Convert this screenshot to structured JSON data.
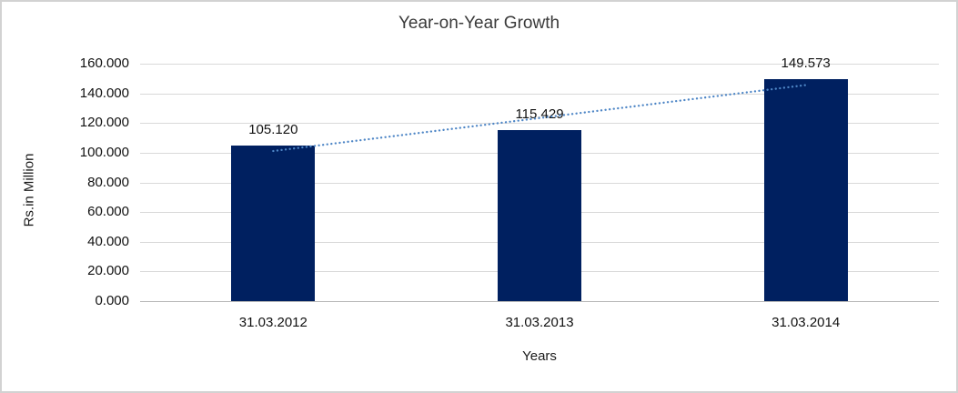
{
  "chart_data": {
    "type": "bar",
    "title": "Year-on-Year Growth",
    "xlabel": "Years",
    "ylabel": "Rs.in Million",
    "categories": [
      "31.03.2012",
      "31.03.2013",
      "31.03.2014"
    ],
    "values": [
      105.12,
      115.429,
      149.573
    ],
    "value_labels": [
      "105.120",
      "115.429",
      "149.573"
    ],
    "y_ticks": [
      "0.000",
      "20.000",
      "40.000",
      "60.000",
      "80.000",
      "100.000",
      "120.000",
      "140.000",
      "160.000"
    ],
    "ylim": [
      0,
      160
    ],
    "grid": true,
    "legend_position": "none",
    "bar_color": "#002060",
    "trendline": {
      "type": "linear",
      "style": "dotted",
      "color": "#4e86c6"
    },
    "gridline_color": "#d9d9d9",
    "axis_line_color": "#b7b7b7",
    "frame_border_color": "#d2d2d2",
    "background_color": "#ffffff"
  }
}
